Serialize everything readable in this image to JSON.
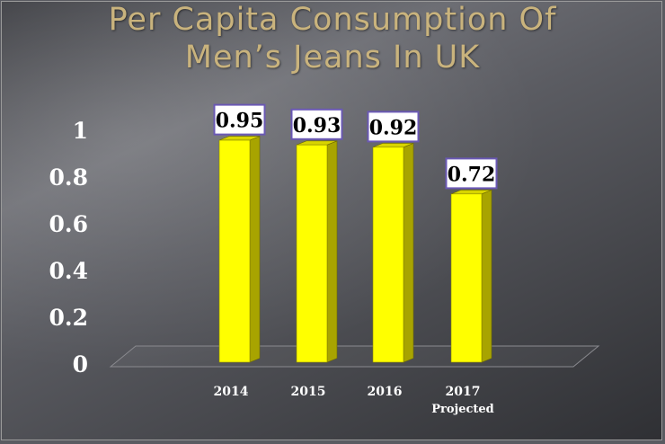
{
  "title": {
    "line1": "Per Capita Consumption Of",
    "line2": "Men’s Jeans In UK"
  },
  "chart_data": {
    "type": "bar",
    "title": "Per Capita Consumption Of Men’s Jeans In UK",
    "categories": [
      "2014",
      "2015",
      "2016",
      "2017"
    ],
    "category_sublabels": [
      "",
      "",
      "",
      "Projected"
    ],
    "values": [
      0.95,
      0.93,
      0.92,
      0.72
    ],
    "data_labels": [
      "0.95",
      "0.93",
      "0.92",
      "0.72"
    ],
    "ylim": [
      0,
      1
    ],
    "yticks": [
      "0",
      "0.2",
      "0.4",
      "0.6",
      "0.8",
      "1"
    ],
    "ytick_values": [
      0,
      0.2,
      0.4,
      0.6,
      0.8,
      1
    ],
    "grid": false,
    "bar_color": "#ffff00",
    "bar_side_color": "#a8a400",
    "label_border_color": "#6a58b4"
  }
}
